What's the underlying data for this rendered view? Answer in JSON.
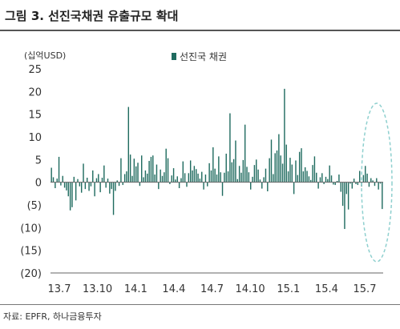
{
  "header": {
    "title": "그림 3. 선진국채권 유출규모 확대",
    "source": "자료: EPFR, 하나금융투자"
  },
  "colors": {
    "bar": "#1f6b5f",
    "axis": "#666666",
    "highlight": "#8fd0cf"
  },
  "chart_data": {
    "type": "bar",
    "unit_label": "(십억USD)",
    "legend": [
      "선진국 채권"
    ],
    "legend_position": "top-center",
    "grid": false,
    "ylim": [
      -20,
      25
    ],
    "yticks": [
      25,
      20,
      15,
      10,
      5,
      0,
      -5,
      -10,
      -15,
      -20
    ],
    "ytick_labels": [
      "25",
      "20",
      "15",
      "10",
      "5",
      "0",
      "(5)",
      "(10)",
      "(15)",
      "(20)"
    ],
    "xtick_labels": [
      "13.7",
      "13.10",
      "14.1",
      "14.4",
      "14.7",
      "14.10",
      "15.1",
      "15.4",
      "15.7"
    ],
    "highlight": "dashed ellipse around the most recent weeks",
    "series": [
      {
        "name": "선진국 채권",
        "values": [
          3.2,
          1.1,
          -1.3,
          0.8,
          5.6,
          -0.7,
          1.4,
          -1.2,
          -1.8,
          -3.1,
          -6.2,
          -5.5,
          1.2,
          -4.0,
          0.7,
          -0.9,
          -2.3,
          4.1,
          -1.5,
          1.0,
          -1.9,
          -0.9,
          2.6,
          -3.1,
          0.9,
          1.8,
          -2.2,
          1.0,
          3.7,
          -1.2,
          0.8,
          -2.5,
          -1.5,
          -7.2,
          -1.9,
          0.4,
          -0.8,
          5.3,
          -0.6,
          1.8,
          2.4,
          16.6,
          6.1,
          1.4,
          5.2,
          3.5,
          4.3,
          -0.8,
          5.9,
          1.1,
          2.6,
          1.9,
          4.7,
          5.6,
          5.9,
          1.7,
          3.9,
          -1.5,
          2.8,
          1.4,
          2.2,
          7.4,
          5.3,
          -0.4,
          1.5,
          3.1,
          0.6,
          1.3,
          -1.3,
          0.9,
          4.6,
          2.0,
          -1.0,
          2.0,
          4.8,
          2.6,
          3.6,
          2.9,
          1.9,
          0.8,
          2.3,
          -1.6,
          1.7,
          -0.9,
          4.2,
          2.6,
          7.7,
          3.0,
          1.7,
          5.7,
          2.2,
          -3.0,
          2.1,
          6.3,
          2.4,
          15.2,
          4.4,
          5.1,
          9.2,
          0.7,
          3.6,
          2.1,
          4.9,
          12.7,
          3.4,
          2.2,
          -1.6,
          1.2,
          3.8,
          5.0,
          2.8,
          0.6,
          -1.4,
          1.1,
          3.0,
          -2.0,
          5.3,
          9.4,
          1.8,
          6.4,
          7.0,
          10.6,
          5.9,
          4.1,
          20.6,
          8.3,
          2.4,
          5.4,
          3.9,
          -2.6,
          4.8,
          1.6,
          6.7,
          7.5,
          2.4,
          3.3,
          2.5,
          1.3,
          0.5,
          3.8,
          5.7,
          2.1,
          -1.4,
          1.1,
          2.0,
          -0.4,
          1.2,
          0.7,
          3.7,
          1.5,
          -0.5,
          -0.6,
          0.3,
          1.7,
          -2.1,
          -5.2,
          -10.3,
          -2.6,
          -6.0,
          -0.3,
          -1.4,
          0.8,
          -0.4,
          -0.6,
          2.5,
          -0.9,
          1.6,
          3.6,
          1.9,
          -1.0,
          0.9,
          0.4,
          -0.8,
          0.9,
          -1.6,
          -0.3,
          -5.9
        ]
      }
    ]
  }
}
